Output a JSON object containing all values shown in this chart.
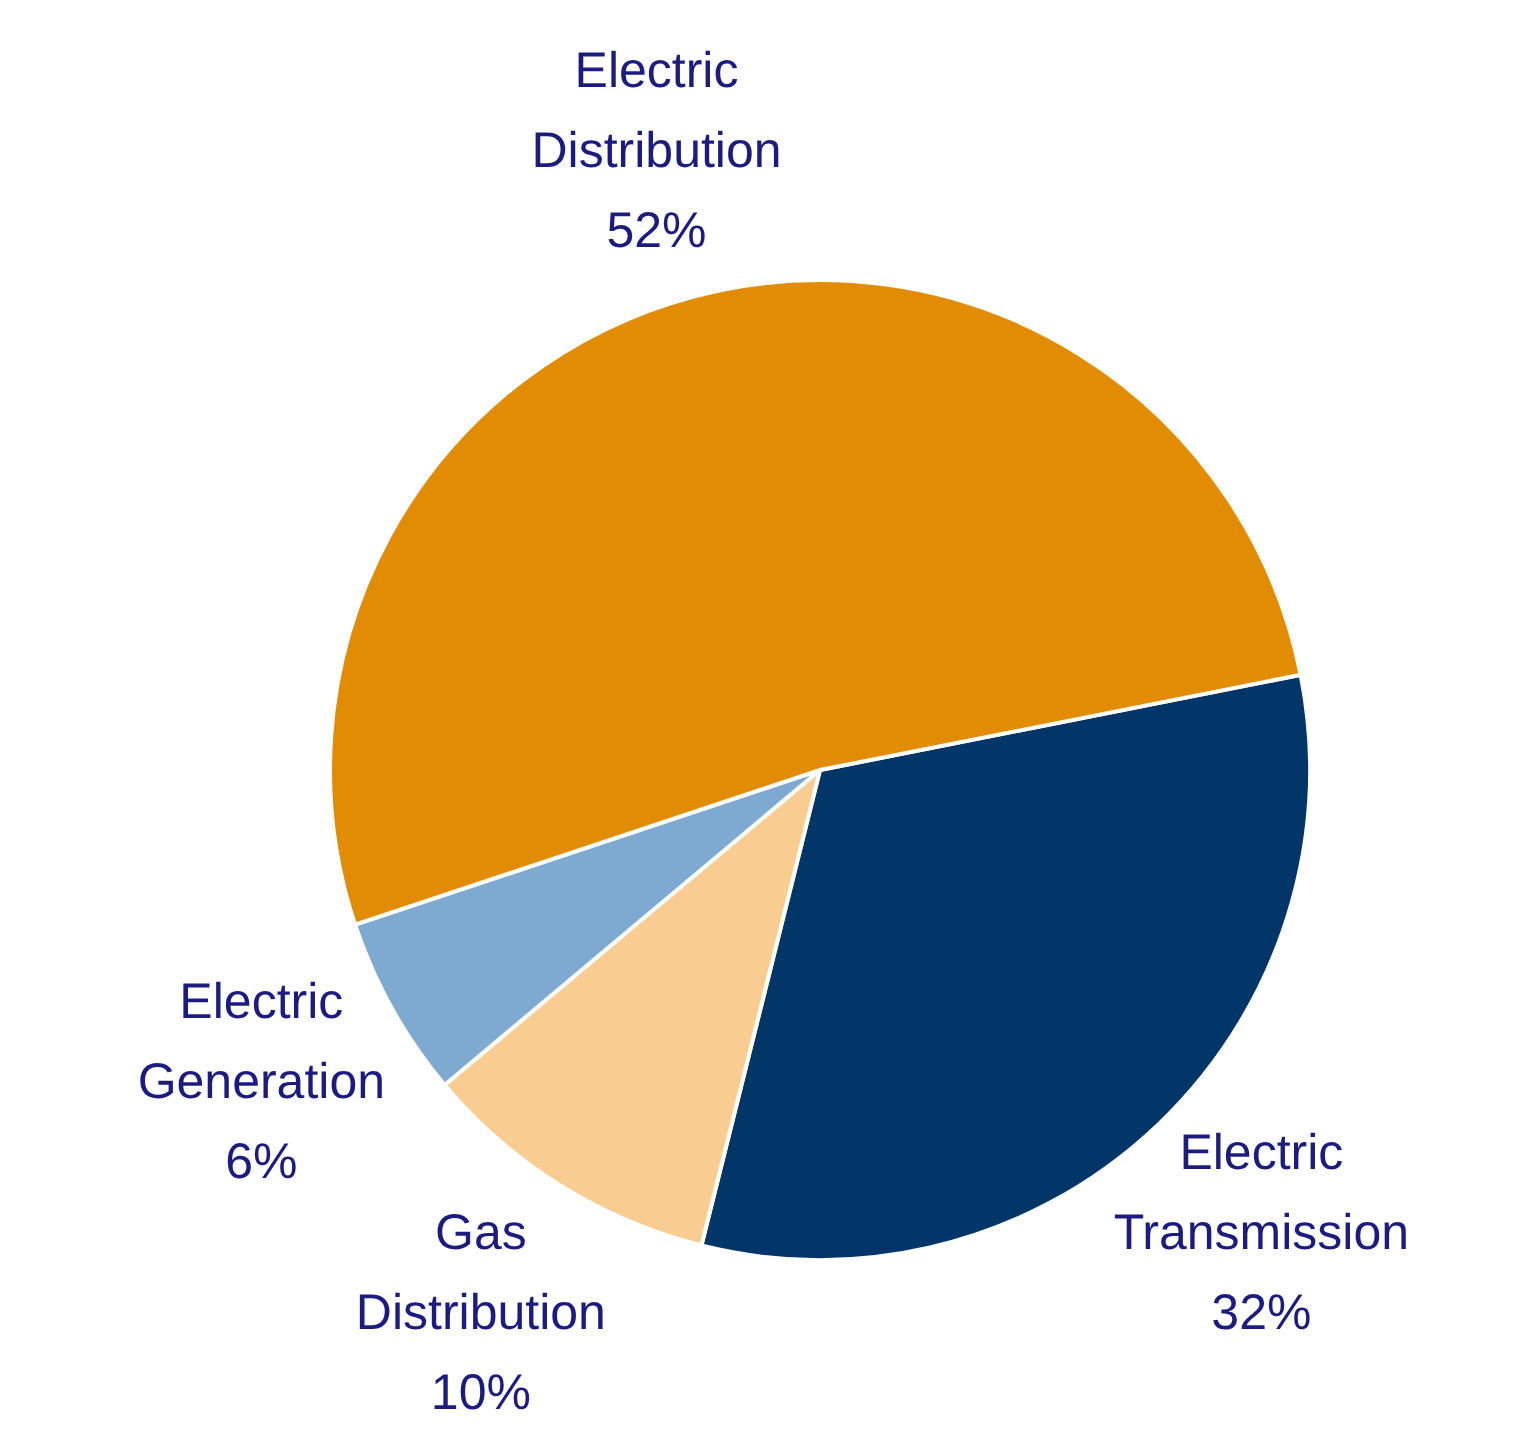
{
  "chart_data": {
    "type": "pie",
    "categories": [
      "Electric Transmission",
      "Gas Distribution",
      "Electric Generation",
      "Electric Distribution"
    ],
    "values": [
      32,
      10,
      6,
      52
    ],
    "colors": [
      "#023668",
      "#f9cd91",
      "#7eaad2",
      "#e28c04"
    ],
    "value_labels": [
      "32%",
      "10%",
      "6%",
      "52%"
    ]
  }
}
